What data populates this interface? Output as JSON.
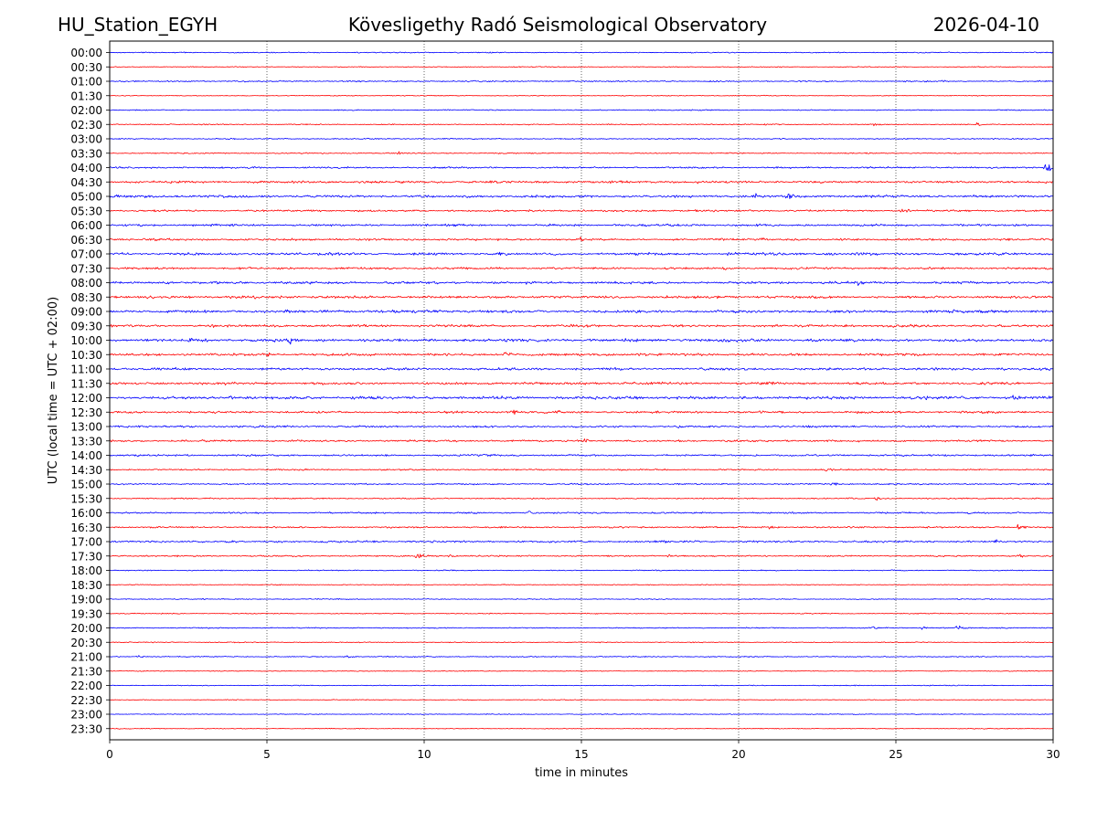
{
  "chart_data": {
    "type": "line",
    "title": "Kövesligethy Radó Seismological Observatory",
    "station": "HU_Station_EGYH",
    "date": "2026-04-10",
    "xlabel": "time in minutes",
    "ylabel": "UTC (local time = UTC + 02:00)",
    "xlim": [
      0,
      30
    ],
    "xticks": [
      0,
      5,
      10,
      15,
      20,
      25,
      30
    ],
    "grid": "vertical dotted at each x tick",
    "row_colors": [
      "#0000ff",
      "#ff0000"
    ],
    "rows": [
      {
        "label": "00:00",
        "noise": 1.2,
        "events": []
      },
      {
        "label": "00:30",
        "noise": 1.0,
        "events": []
      },
      {
        "label": "01:00",
        "noise": 1.5,
        "events": [
          [
            26.5,
            2.5
          ]
        ]
      },
      {
        "label": "01:30",
        "noise": 0.9,
        "events": []
      },
      {
        "label": "02:00",
        "noise": 1.2,
        "events": [
          [
            17.2,
            1.8
          ]
        ]
      },
      {
        "label": "02:30",
        "noise": 1.2,
        "events": [
          [
            20.9,
            3
          ],
          [
            24.3,
            2.5
          ],
          [
            27.6,
            3
          ]
        ]
      },
      {
        "label": "03:00",
        "noise": 1.3,
        "events": []
      },
      {
        "label": "03:30",
        "noise": 1.3,
        "events": [
          [
            9.2,
            2
          ]
        ]
      },
      {
        "label": "04:00",
        "noise": 1.9,
        "events": [
          [
            29.8,
            6
          ]
        ]
      },
      {
        "label": "04:30",
        "noise": 2.6,
        "events": [
          [
            18.7,
            3
          ]
        ]
      },
      {
        "label": "05:00",
        "noise": 2.8,
        "events": [
          [
            8.3,
            3
          ],
          [
            17.5,
            4
          ],
          [
            20.5,
            5
          ],
          [
            21.6,
            6
          ]
        ]
      },
      {
        "label": "05:30",
        "noise": 2.2,
        "events": [
          [
            25.2,
            5
          ]
        ]
      },
      {
        "label": "06:00",
        "noise": 2.4,
        "events": [
          [
            2.7,
            3
          ]
        ]
      },
      {
        "label": "06:30",
        "noise": 2.4,
        "events": [
          [
            15.0,
            4
          ],
          [
            20.7,
            4
          ],
          [
            28.5,
            3
          ]
        ]
      },
      {
        "label": "07:00",
        "noise": 2.9,
        "events": [
          [
            12.4,
            4
          ]
        ]
      },
      {
        "label": "07:30",
        "noise": 2.4,
        "events": [
          [
            19.5,
            4
          ],
          [
            22.2,
            3
          ]
        ]
      },
      {
        "label": "08:00",
        "noise": 3.0,
        "events": [
          [
            23.8,
            4
          ]
        ]
      },
      {
        "label": "08:30",
        "noise": 3.0,
        "events": []
      },
      {
        "label": "09:00",
        "noise": 3.2,
        "events": [
          [
            10.0,
            4
          ],
          [
            26.8,
            4
          ]
        ]
      },
      {
        "label": "09:30",
        "noise": 2.8,
        "events": [
          [
            3.3,
            4
          ],
          [
            23.4,
            4
          ]
        ]
      },
      {
        "label": "10:00",
        "noise": 3.3,
        "events": [
          [
            2.5,
            6
          ],
          [
            5.7,
            6
          ]
        ]
      },
      {
        "label": "10:30",
        "noise": 2.8,
        "events": [
          [
            5.0,
            4
          ],
          [
            12.6,
            4
          ],
          [
            16.8,
            3
          ]
        ]
      },
      {
        "label": "11:00",
        "noise": 2.8,
        "events": [
          [
            28.3,
            4
          ]
        ]
      },
      {
        "label": "11:30",
        "noise": 2.8,
        "events": []
      },
      {
        "label": "12:00",
        "noise": 3.2,
        "events": [
          [
            3.8,
            5
          ],
          [
            26.0,
            5
          ],
          [
            28.7,
            4
          ]
        ]
      },
      {
        "label": "12:30",
        "noise": 2.6,
        "events": [
          [
            12.8,
            5
          ],
          [
            14.2,
            4
          ]
        ]
      },
      {
        "label": "13:00",
        "noise": 2.2,
        "events": [
          [
            7.8,
            3
          ],
          [
            18.1,
            3
          ]
        ]
      },
      {
        "label": "13:30",
        "noise": 2.2,
        "events": [
          [
            15.1,
            4
          ]
        ]
      },
      {
        "label": "14:00",
        "noise": 2.2,
        "events": [
          [
            11.8,
            3
          ]
        ]
      },
      {
        "label": "14:30",
        "noise": 1.6,
        "events": [
          [
            22.8,
            4
          ]
        ]
      },
      {
        "label": "15:00",
        "noise": 1.6,
        "events": [
          [
            23.0,
            4
          ],
          [
            29.9,
            3
          ]
        ]
      },
      {
        "label": "15:30",
        "noise": 1.5,
        "events": [
          [
            24.4,
            4
          ],
          [
            28.7,
            3
          ]
        ]
      },
      {
        "label": "16:00",
        "noise": 1.8,
        "events": [
          [
            13.3,
            3
          ],
          [
            27.2,
            3
          ]
        ]
      },
      {
        "label": "16:30",
        "noise": 1.9,
        "events": [
          [
            21.0,
            3
          ],
          [
            28.9,
            5
          ]
        ]
      },
      {
        "label": "17:00",
        "noise": 2.2,
        "events": [
          [
            5.3,
            3
          ],
          [
            28.2,
            3
          ]
        ]
      },
      {
        "label": "17:30",
        "noise": 1.6,
        "events": [
          [
            9.8,
            6
          ],
          [
            10.8,
            4
          ],
          [
            17.8,
            3
          ],
          [
            28.9,
            3
          ]
        ]
      },
      {
        "label": "18:00",
        "noise": 1.2,
        "events": [
          [
            1.2,
            2
          ]
        ]
      },
      {
        "label": "18:30",
        "noise": 1.0,
        "events": []
      },
      {
        "label": "19:00",
        "noise": 1.1,
        "events": []
      },
      {
        "label": "19:30",
        "noise": 1.1,
        "events": []
      },
      {
        "label": "20:00",
        "noise": 1.3,
        "events": [
          [
            24.3,
            3
          ],
          [
            25.8,
            3
          ],
          [
            27.0,
            4.5
          ]
        ]
      },
      {
        "label": "20:30",
        "noise": 1.0,
        "events": []
      },
      {
        "label": "21:00",
        "noise": 1.2,
        "events": [
          [
            0.9,
            3
          ],
          [
            7.6,
            2
          ]
        ]
      },
      {
        "label": "21:30",
        "noise": 0.9,
        "events": []
      },
      {
        "label": "22:00",
        "noise": 1.0,
        "events": []
      },
      {
        "label": "22:30",
        "noise": 0.9,
        "events": []
      },
      {
        "label": "23:00",
        "noise": 0.9,
        "events": []
      },
      {
        "label": "23:30",
        "noise": 0.9,
        "events": []
      }
    ]
  }
}
